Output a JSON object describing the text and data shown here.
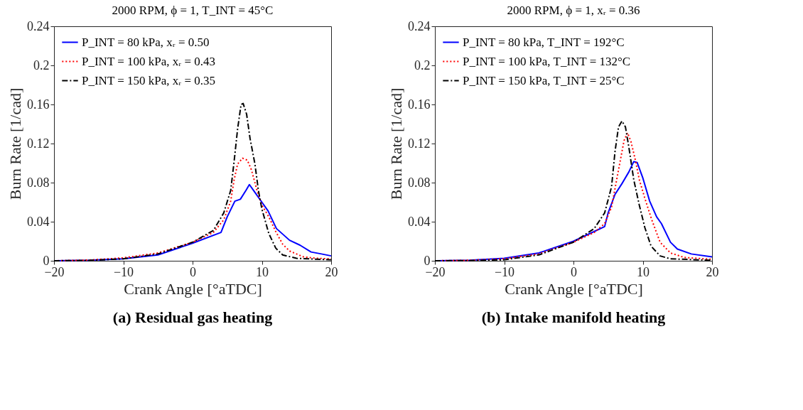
{
  "chart_data": [
    {
      "type": "line",
      "title": "2000 RPM, ϕ = 1, T_INT = 45°C",
      "xlabel": "Crank Angle [°aTDC]",
      "ylabel": "Burn Rate [1/cad]",
      "annotations": [
        "(a) Residual gas heating"
      ],
      "xlim": [
        -20,
        20
      ],
      "xticks": [
        -20,
        -10,
        0,
        10,
        20
      ],
      "ylim": [
        0,
        0.24
      ],
      "yticks": [
        0,
        0.04,
        0.08,
        0.12,
        0.16,
        0.2,
        0.24
      ],
      "grid": false,
      "legend": "top left",
      "marker": "none",
      "series": [
        {
          "name": "P_INT = 80 kPa, xᵣ = 0.50",
          "color": "#0000ff",
          "line_style": "solid",
          "x": [
            -20,
            -15,
            -10,
            -5,
            0,
            4.1,
            5.0,
            6.1,
            6.9,
            7.7,
            8.2,
            8.9,
            10.0,
            10.9,
            12.1,
            14.0,
            15.5,
            17.1,
            18.6,
            20
          ],
          "values": [
            0,
            0.0005,
            0.002,
            0.006,
            0.018,
            0.029,
            0.045,
            0.061,
            0.063,
            0.072,
            0.078,
            0.071,
            0.06,
            0.051,
            0.033,
            0.021,
            0.016,
            0.009,
            0.007,
            0.005
          ]
        },
        {
          "name": "P_INT = 100 kPa, xᵣ = 0.43",
          "color": "#ff0000",
          "line_style": "dotted",
          "x": [
            -20,
            -15,
            -10,
            -5,
            0,
            3,
            4.5,
            5.5,
            6,
            6.5,
            7.2,
            7.9,
            8.5,
            9.3,
            10,
            11,
            12,
            13,
            14,
            16,
            18,
            20
          ],
          "values": [
            0,
            0.0007,
            0.003,
            0.008,
            0.019,
            0.029,
            0.042,
            0.061,
            0.083,
            0.099,
            0.105,
            0.103,
            0.093,
            0.072,
            0.057,
            0.045,
            0.03,
            0.017,
            0.01,
            0.004,
            0.0025,
            0.002
          ]
        },
        {
          "name": "P_INT = 150 kPa, xᵣ = 0.35",
          "color": "#000000",
          "line_style": "dashed",
          "x": [
            -20,
            -15,
            -10,
            -5,
            0,
            3,
            4.5,
            5.5,
            6,
            6.5,
            7,
            7.3,
            7.8,
            8.3,
            9,
            9.5,
            10,
            11,
            12,
            13,
            15,
            20
          ],
          "values": [
            0,
            0.0004,
            0.002,
            0.007,
            0.019,
            0.031,
            0.049,
            0.072,
            0.102,
            0.135,
            0.16,
            0.161,
            0.15,
            0.125,
            0.099,
            0.072,
            0.053,
            0.028,
            0.013,
            0.006,
            0.0025,
            0.001
          ]
        }
      ]
    },
    {
      "type": "line",
      "title": "2000 RPM, ϕ = 1, xᵣ = 0.36",
      "xlabel": "Crank Angle [°aTDC]",
      "ylabel": "Burn Rate [1/cad]",
      "annotations": [
        "(b) Intake manifold heating"
      ],
      "xlim": [
        -20,
        20
      ],
      "xticks": [
        -20,
        -10,
        0,
        10,
        20
      ],
      "ylim": [
        0,
        0.24
      ],
      "yticks": [
        0,
        0.04,
        0.08,
        0.12,
        0.16,
        0.2,
        0.24
      ],
      "grid": false,
      "legend": "top left",
      "marker": "none",
      "series": [
        {
          "name": "P_INT = 80 kPa, T_INT = 192°C",
          "color": "#0000ff",
          "line_style": "solid",
          "x": [
            -20,
            -15,
            -10,
            -5,
            0,
            3,
            4.5,
            5,
            6,
            7,
            8,
            8.7,
            9.2,
            10,
            11,
            12,
            12.7,
            14,
            15,
            17,
            20
          ],
          "values": [
            0,
            0.0006,
            0.0025,
            0.008,
            0.02,
            0.03,
            0.035,
            0.049,
            0.068,
            0.079,
            0.091,
            0.1015,
            0.1005,
            0.085,
            0.061,
            0.045,
            0.038,
            0.019,
            0.012,
            0.007,
            0.004
          ]
        },
        {
          "name": "P_INT = 100 kPa, T_INT = 132°C",
          "color": "#ff0000",
          "line_style": "dotted",
          "x": [
            -20,
            -15,
            -10,
            -5,
            0,
            3,
            4.5,
            5.5,
            6.5,
            7.3,
            7.8,
            8.3,
            9,
            9.5,
            10.3,
            11.3,
            12.5,
            14,
            16,
            20
          ],
          "values": [
            0,
            0.0005,
            0.002,
            0.007,
            0.019,
            0.029,
            0.038,
            0.055,
            0.093,
            0.123,
            0.131,
            0.122,
            0.101,
            0.083,
            0.064,
            0.042,
            0.019,
            0.008,
            0.0034,
            0.0015
          ]
        },
        {
          "name": "P_INT = 150 kPa, T_INT = 25°C",
          "color": "#000000",
          "line_style": "dashed",
          "x": [
            -20,
            -15,
            -10,
            -5,
            0,
            3,
            4.5,
            5.5,
            6,
            6.5,
            7,
            7.5,
            8,
            8.7,
            9.5,
            10.3,
            11.2,
            12.5,
            14,
            20
          ],
          "values": [
            0,
            0.0002,
            0.001,
            0.006,
            0.019,
            0.033,
            0.049,
            0.076,
            0.112,
            0.137,
            0.143,
            0.137,
            0.116,
            0.083,
            0.057,
            0.034,
            0.015,
            0.005,
            0.002,
            0.0005
          ]
        }
      ]
    }
  ]
}
